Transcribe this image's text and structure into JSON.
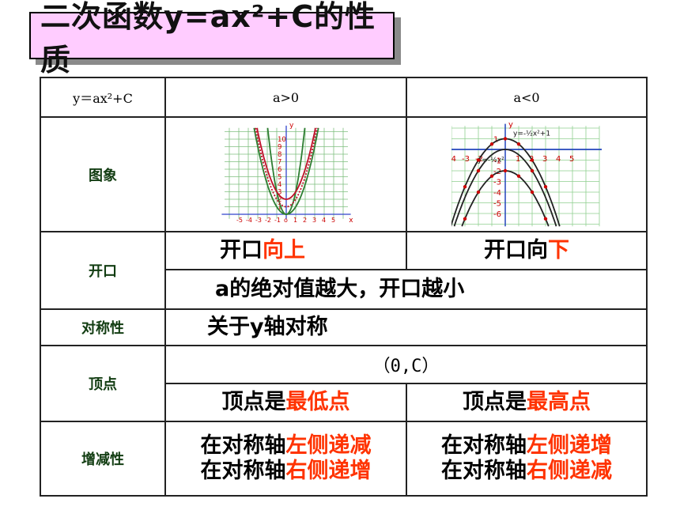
{
  "title": "二次函数y=ax²+C的性质",
  "header": {
    "col1": "y＝ax²+C",
    "col2": "a>0",
    "col3": "a<0"
  },
  "rows": {
    "graph_label": "图象",
    "opening_label": "开口",
    "opening_pos_prefix": "开口",
    "opening_pos_em": "向上",
    "opening_neg_prefix": "开口向",
    "opening_neg_em": "下",
    "opening_note": "a的绝对值越大，开口越小",
    "symmetry_label": "对称性",
    "symmetry_text": "关于y轴对称",
    "vertex_label": "顶点",
    "vertex_coord": "（0,C）",
    "vertex_pos_prefix": "顶点是",
    "vertex_pos_em": "最低点",
    "vertex_neg_prefix": "顶点是",
    "vertex_neg_em": "最高点",
    "mono_label": "增减性",
    "mono_prefix": "在对称轴",
    "mono_pos_1_em": "左侧递减",
    "mono_pos_2_em": "右侧递增",
    "mono_neg_1_em": "左侧递增",
    "mono_neg_2_em": "右侧递减"
  },
  "graph_pos": {
    "y_label": "y",
    "x_label": "x",
    "y_ticks": [
      "10",
      "9",
      "8",
      "7",
      "6",
      "5",
      "4",
      "3",
      "2",
      "1"
    ],
    "x_ticks": [
      "-5",
      "-4",
      "-3",
      "-2",
      "-1",
      "o",
      "1",
      "2",
      "3",
      "4",
      "5"
    ]
  },
  "graph_neg": {
    "y_label": "y",
    "x_label": "x",
    "equation_top": "y=-½x²+1",
    "equation_mid": "y=-½x²",
    "y_ticks": [
      "1",
      "-1",
      "-2",
      "-3",
      "-4",
      "-5",
      "-6"
    ],
    "x_ticks": [
      "-4",
      "-3",
      "-2",
      "1",
      "2",
      "3",
      "4",
      "5"
    ]
  },
  "colors": {
    "accent_red": "#ff3300",
    "title_bg": "#ffccff",
    "curve_red": "#c0102a",
    "curve_green": "#2e7d32"
  }
}
